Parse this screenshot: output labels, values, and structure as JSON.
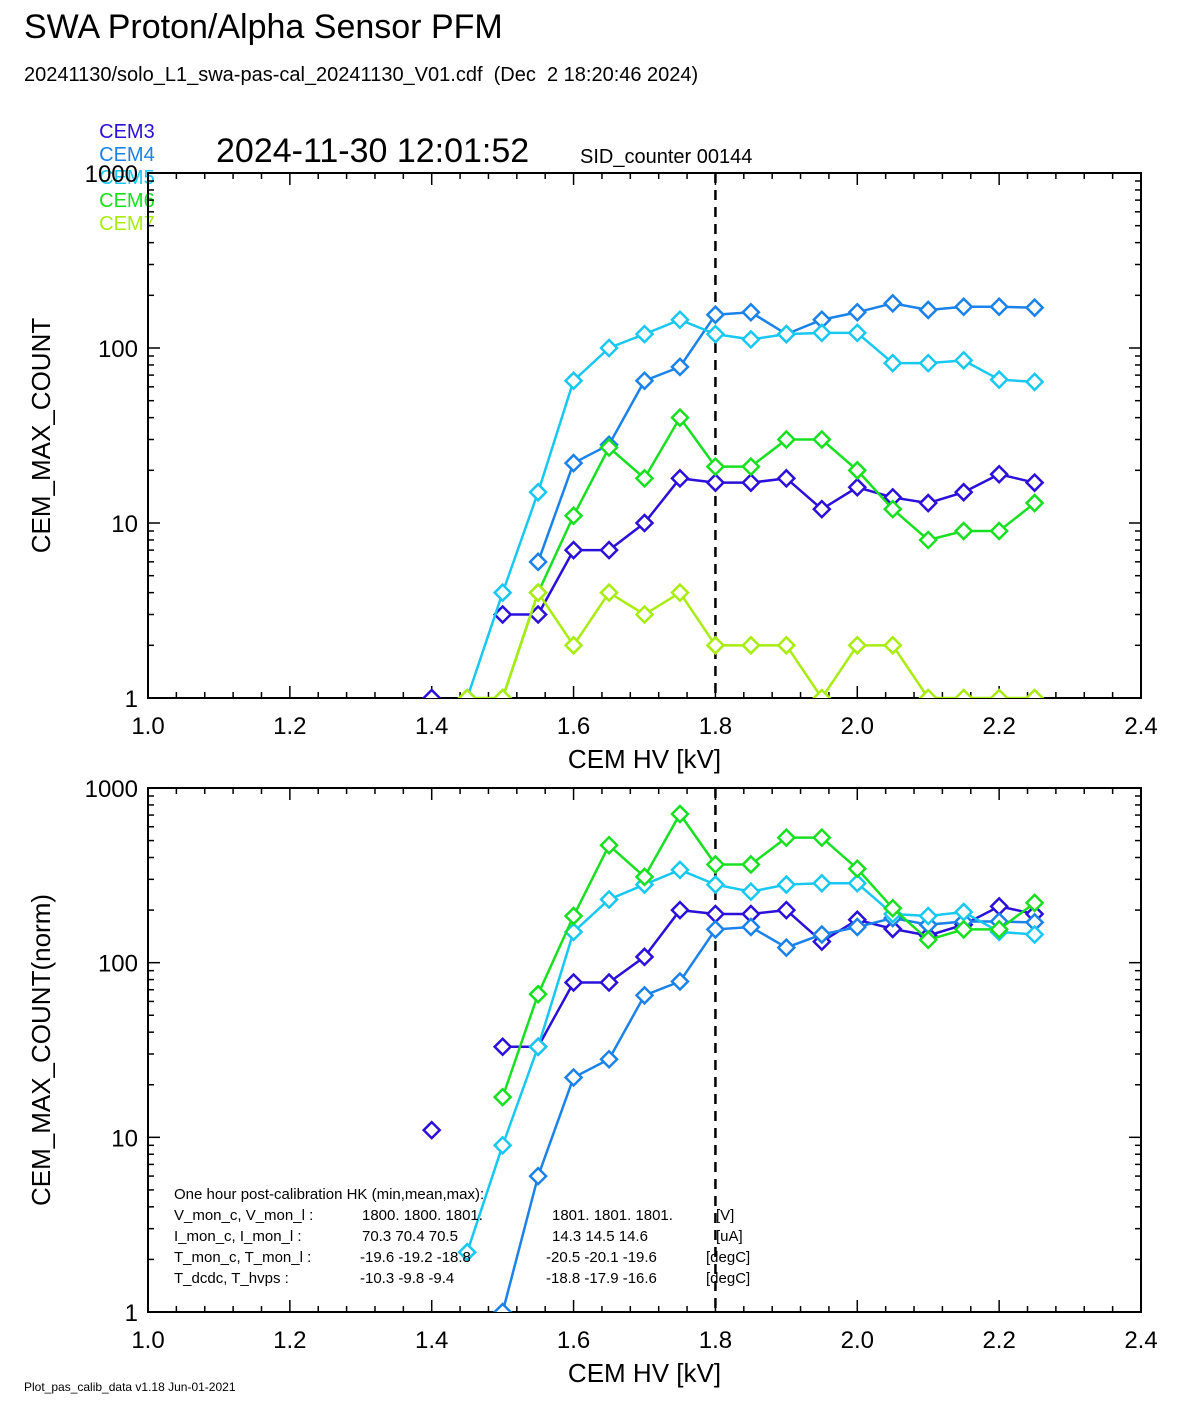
{
  "header": {
    "title": "SWA Proton/Alpha Sensor PFM",
    "subtitle": "20241130/solo_L1_swa-pas-cal_20241130_V01.cdf  (Dec  2 18:20:46 2024)",
    "timestamp": "2024-11-30 12:01:52",
    "sid_counter": "SID_counter 00144"
  },
  "legend": [
    {
      "name": "CEM3",
      "color": "#2a10d8"
    },
    {
      "name": "CEM4",
      "color": "#1a82e8"
    },
    {
      "name": "CEM5",
      "color": "#18c8f0"
    },
    {
      "name": "CEM6",
      "color": "#18e020"
    },
    {
      "name": "CEM7",
      "color": "#a8ec10"
    }
  ],
  "footer": "Plot_pas_calib_data v1.18 Jun-01-2021",
  "hk_table": {
    "title": "One hour post-calibration HK (min,mean,max):",
    "rows": [
      {
        "label": "V_mon_c, V_mon_l :",
        "a": "1800.  1800.  1801.",
        "b": "1801.  1801.  1801.",
        "unit": "[V]"
      },
      {
        "label": "I_mon_c,  I_mon_l :",
        "a": "70.3   70.4   70.5",
        "b": "14.3   14.5   14.6",
        "unit": "[uA]"
      },
      {
        "label": "T_mon_c, T_mon_l :",
        "a": "-19.6  -19.2  -18.8",
        "b": "-20.5  -20.1  -19.6",
        "unit": "[degC]"
      },
      {
        "label": "T_dcdc,    T_hvps :",
        "a": "-10.3   -9.8   -9.4",
        "b": "-18.8  -17.9  -16.6",
        "unit": "[degC]"
      }
    ]
  },
  "chart_data": [
    {
      "type": "line",
      "xlabel": "CEM HV [kV]",
      "ylabel": "CEM_MAX_COUNT",
      "xlim": [
        1.0,
        2.4
      ],
      "ylim": [
        1,
        1000
      ],
      "yscale": "log",
      "xticks": [
        "1.0",
        "1.2",
        "1.4",
        "1.6",
        "1.8",
        "2.0",
        "2.2",
        "2.4"
      ],
      "yticks": [
        "1",
        "10",
        "100",
        "1000"
      ],
      "vline": 1.8,
      "x": [
        1.4,
        1.45,
        1.5,
        1.55,
        1.6,
        1.65,
        1.7,
        1.75,
        1.8,
        1.85,
        1.9,
        1.95,
        2.0,
        2.05,
        2.1,
        2.15,
        2.2,
        2.25
      ],
      "series": [
        {
          "name": "CEM3",
          "color": "#2a10d8",
          "values": [
            1,
            null,
            3,
            3,
            7,
            7,
            10,
            18,
            17,
            17,
            18,
            12,
            16,
            14,
            13,
            15,
            19,
            17
          ]
        },
        {
          "name": "CEM4",
          "color": "#1a82e8",
          "values": [
            null,
            null,
            null,
            6,
            22,
            28,
            65,
            78,
            155,
            160,
            120,
            145,
            160,
            180,
            165,
            172,
            172,
            170
          ]
        },
        {
          "name": "CEM5",
          "color": "#18c8f0",
          "values": [
            null,
            1,
            4,
            15,
            65,
            100,
            120,
            145,
            120,
            112,
            120,
            122,
            122,
            82,
            82,
            85,
            66,
            64
          ]
        },
        {
          "name": "CEM6",
          "color": "#18e020",
          "values": [
            null,
            null,
            1,
            4,
            11,
            27,
            18,
            40,
            21,
            21,
            30,
            30,
            20,
            12,
            8,
            9,
            9,
            13
          ]
        },
        {
          "name": "CEM7",
          "color": "#a8ec10",
          "values": [
            null,
            1,
            1,
            4,
            2,
            4,
            3,
            4,
            2,
            2,
            2,
            1,
            2,
            2,
            1,
            1,
            1,
            1
          ]
        }
      ]
    },
    {
      "type": "line",
      "xlabel": "CEM HV [kV]",
      "ylabel": "CEM_MAX_COUNT(norm)",
      "xlim": [
        1.0,
        2.4
      ],
      "ylim": [
        1,
        1000
      ],
      "yscale": "log",
      "xticks": [
        "1.0",
        "1.2",
        "1.4",
        "1.6",
        "1.8",
        "2.0",
        "2.2",
        "2.4"
      ],
      "yticks": [
        "1",
        "10",
        "100",
        "1000"
      ],
      "vline": 1.8,
      "x": [
        1.4,
        1.45,
        1.5,
        1.55,
        1.6,
        1.65,
        1.7,
        1.75,
        1.8,
        1.85,
        1.9,
        1.95,
        2.0,
        2.05,
        2.1,
        2.15,
        2.2,
        2.25
      ],
      "series": [
        {
          "name": "CEM3",
          "color": "#2a10d8",
          "values": [
            11,
            null,
            33,
            33,
            77,
            77,
            108,
            200,
            190,
            190,
            200,
            132,
            176,
            156,
            143,
            165,
            210,
            190
          ]
        },
        {
          "name": "CEM4",
          "color": "#1a82e8",
          "values": [
            null,
            null,
            1,
            6,
            22,
            28,
            65,
            78,
            155,
            160,
            122,
            145,
            160,
            180,
            165,
            172,
            172,
            170
          ]
        },
        {
          "name": "CEM5",
          "color": "#18c8f0",
          "values": [
            null,
            2.2,
            9,
            33,
            150,
            230,
            280,
            340,
            280,
            255,
            280,
            285,
            285,
            190,
            185,
            195,
            150,
            145
          ]
        },
        {
          "name": "CEM6",
          "color": "#18e020",
          "values": [
            null,
            null,
            17,
            66,
            185,
            470,
            310,
            710,
            365,
            365,
            520,
            520,
            345,
            205,
            135,
            155,
            155,
            220
          ]
        }
      ]
    }
  ]
}
